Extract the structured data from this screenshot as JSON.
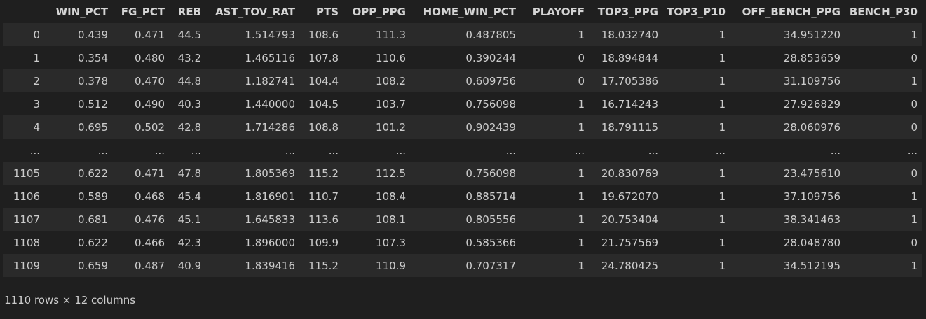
{
  "columns": [
    "",
    "WIN_PCT",
    "FG_PCT",
    "REB",
    "AST_TOV_RAT",
    "PTS",
    "OPP_PPG",
    "HOME_WIN_PCT",
    "PLAYOFF",
    "TOP3_PPG",
    "TOP3_P10",
    "OFF_BENCH_PPG",
    "BENCH_P30"
  ],
  "rows": [
    [
      "0",
      "0.439",
      "0.471",
      "44.5",
      "1.514793",
      "108.6",
      "111.3",
      "0.487805",
      "1",
      "18.032740",
      "1",
      "34.951220",
      "1"
    ],
    [
      "1",
      "0.354",
      "0.480",
      "43.2",
      "1.465116",
      "107.8",
      "110.6",
      "0.390244",
      "0",
      "18.894844",
      "1",
      "28.853659",
      "0"
    ],
    [
      "2",
      "0.378",
      "0.470",
      "44.8",
      "1.182741",
      "104.4",
      "108.2",
      "0.609756",
      "0",
      "17.705386",
      "1",
      "31.109756",
      "1"
    ],
    [
      "3",
      "0.512",
      "0.490",
      "40.3",
      "1.440000",
      "104.5",
      "103.7",
      "0.756098",
      "1",
      "16.714243",
      "1",
      "27.926829",
      "0"
    ],
    [
      "4",
      "0.695",
      "0.502",
      "42.8",
      "1.714286",
      "108.8",
      "101.2",
      "0.902439",
      "1",
      "18.791115",
      "1",
      "28.060976",
      "0"
    ],
    [
      "...",
      "...",
      "...",
      "...",
      "...",
      "...",
      "...",
      "...",
      "...",
      "...",
      "...",
      "...",
      "..."
    ],
    [
      "1105",
      "0.622",
      "0.471",
      "47.8",
      "1.805369",
      "115.2",
      "112.5",
      "0.756098",
      "1",
      "20.830769",
      "1",
      "23.475610",
      "0"
    ],
    [
      "1106",
      "0.589",
      "0.468",
      "45.4",
      "1.816901",
      "110.7",
      "108.4",
      "0.885714",
      "1",
      "19.672070",
      "1",
      "37.109756",
      "1"
    ],
    [
      "1107",
      "0.681",
      "0.476",
      "45.1",
      "1.645833",
      "113.6",
      "108.1",
      "0.805556",
      "1",
      "20.753404",
      "1",
      "38.341463",
      "1"
    ],
    [
      "1108",
      "0.622",
      "0.466",
      "42.3",
      "1.896000",
      "109.9",
      "107.3",
      "0.585366",
      "1",
      "21.757569",
      "1",
      "28.048780",
      "0"
    ],
    [
      "1109",
      "0.659",
      "0.487",
      "40.9",
      "1.839416",
      "115.2",
      "110.9",
      "0.707317",
      "1",
      "24.780425",
      "1",
      "34.512195",
      "1"
    ]
  ],
  "footer": "1110 rows × 12 columns",
  "colors": {
    "background": "#1f1f1f",
    "row_stripe": "#2a2a2a",
    "text": "#cccccc"
  }
}
